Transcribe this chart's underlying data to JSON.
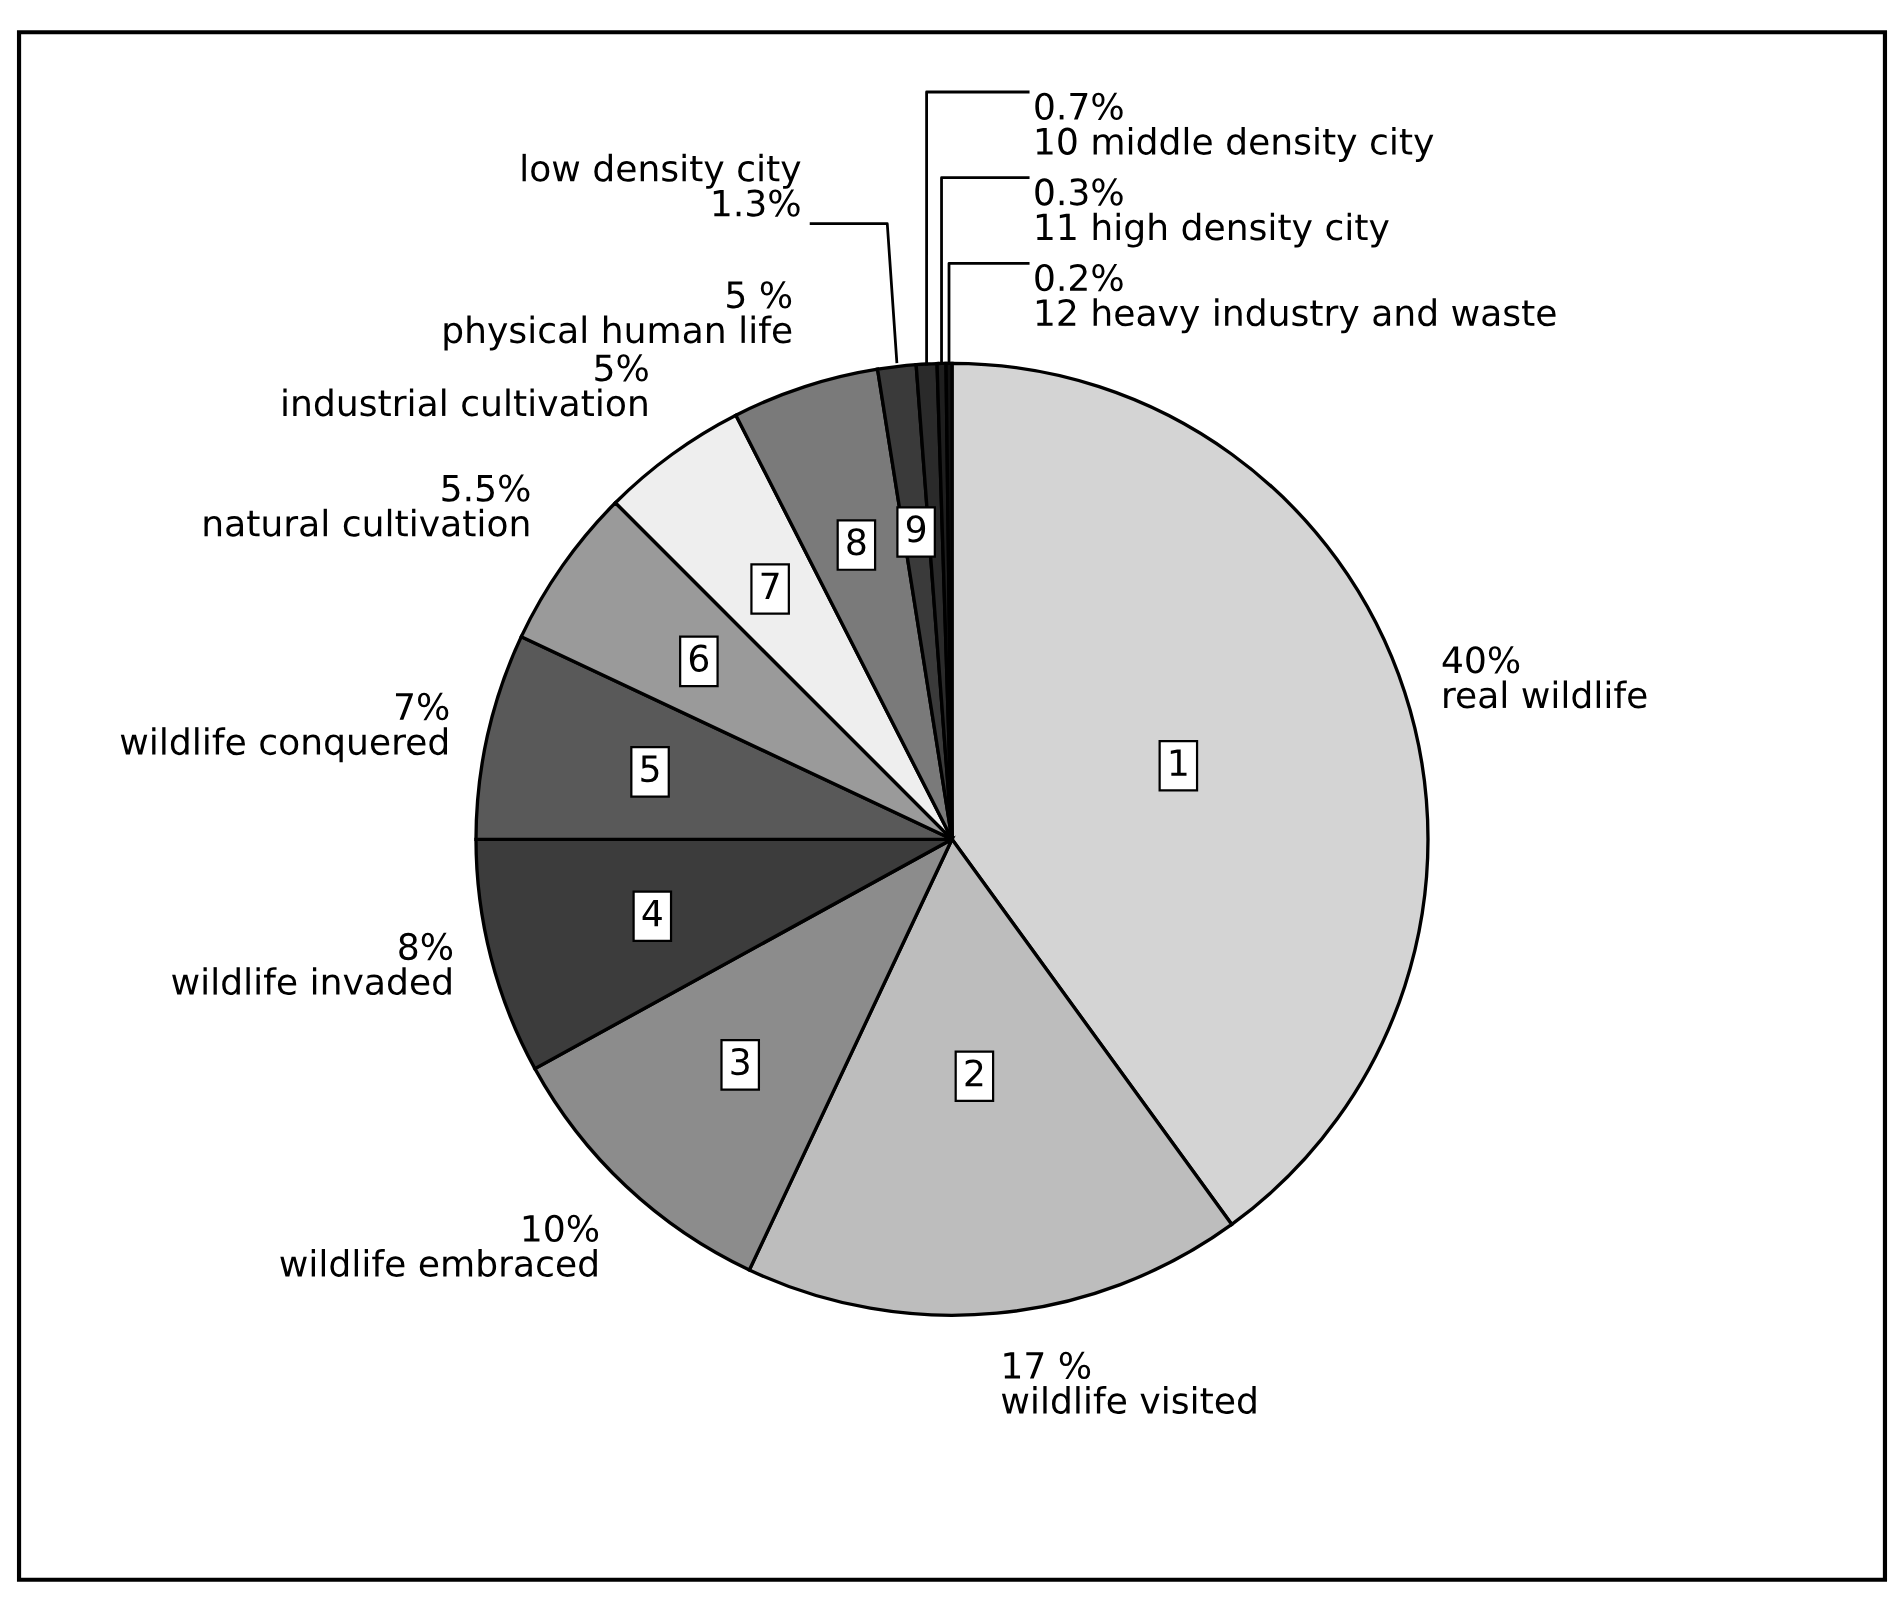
{
  "chart_data": {
    "type": "pie",
    "categories": [
      "real wildlife",
      "wildlife visited",
      "wildlife embraced",
      "wildlife invaded",
      "wildlife conquered",
      "natural cultivation",
      "industrial cultivation",
      "physical human life",
      "low density city",
      "10 middle density city",
      "11 high density city",
      "12 heavy industry and waste"
    ],
    "values": [
      40,
      17,
      10,
      8,
      7,
      5.5,
      5,
      5,
      1.3,
      0.7,
      0.3,
      0.2
    ],
    "value_labels": [
      "40%",
      "17 %",
      "10%",
      "8%",
      "7%",
      "5.5%",
      "5%",
      "5 %",
      "1.3%",
      "0.7%",
      "0.3%",
      "0.2%"
    ],
    "colors": [
      "#d4d4d4",
      "#bdbdbd",
      "#8c8c8c",
      "#3c3c3c",
      "#595959",
      "#9a9a9a",
      "#eeeeee",
      "#7a7a7a",
      "#3a3a3a",
      "#2a2a2a",
      "#1e1e1e",
      "#111111"
    ],
    "annotations": [
      "1",
      "2",
      "3",
      "4",
      "5",
      "6",
      "7",
      "8",
      "9"
    ],
    "legend": false
  }
}
